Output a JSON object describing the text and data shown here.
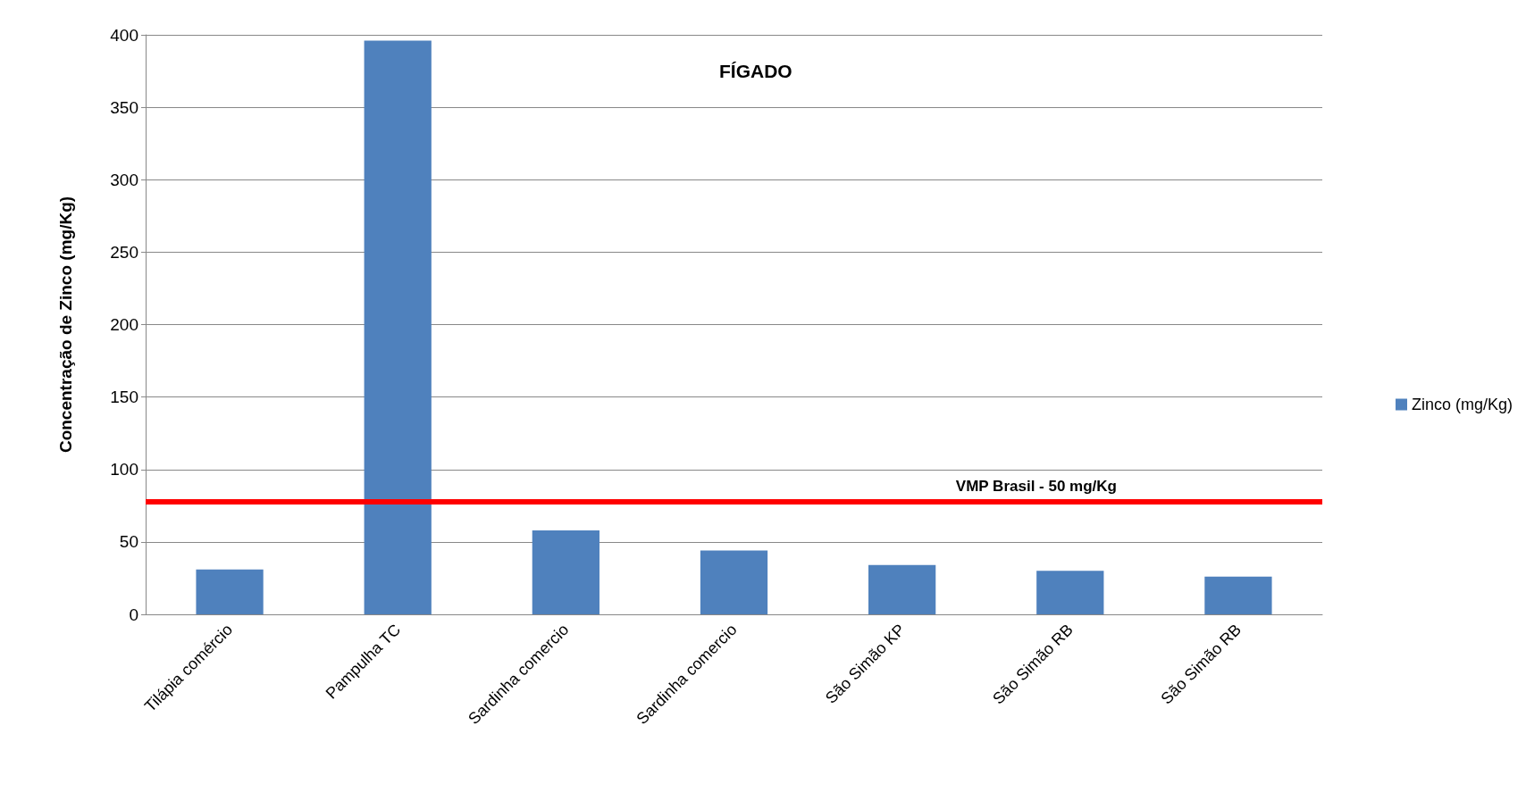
{
  "chart_data": {
    "type": "bar",
    "title": "FÍGADO",
    "ylabel": "Concentração de Zinco (mg/Kg)",
    "categories": [
      "Tilápia comércio",
      "Pampulha TC",
      "Sardinha comercio",
      "Sardinha comercio",
      "São Simão KP",
      "São Simão RB",
      "São Simão RB"
    ],
    "series": [
      {
        "name": "Zinco (mg/Kg)",
        "color": "#4f81bd",
        "values": [
          31,
          396,
          58,
          44,
          34,
          30,
          26
        ]
      }
    ],
    "ylim": [
      0,
      400
    ],
    "yticks": [
      0,
      50,
      100,
      150,
      200,
      250,
      300,
      350,
      400
    ],
    "grid": "y",
    "legend": "right",
    "ref_lines": [
      {
        "axis": "y",
        "value": 78,
        "label": "VMP Brasil - 50 mg/Kg",
        "color": "#ff0000"
      }
    ]
  }
}
